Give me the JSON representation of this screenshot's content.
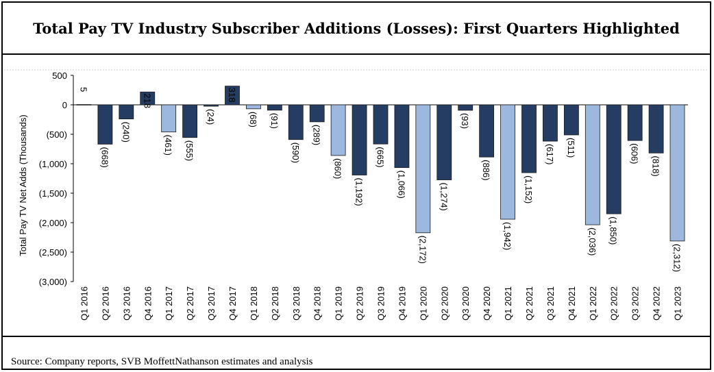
{
  "header": {
    "title": "Total Pay TV Industry Subscriber Additions (Losses): First Quarters Highlighted"
  },
  "footer": {
    "source": "Source: Company reports, SVB MoffettNathanson estimates and analysis"
  },
  "chart_data": {
    "type": "bar",
    "title": "Total Pay TV Industry Subscriber Additions (Losses): First Quarters Highlighted",
    "xlabel": "",
    "ylabel": "Total Pay TV Net Adds (Thousands)",
    "ylim": [
      -3000,
      500
    ],
    "yticks": [
      500,
      0,
      -500,
      -1000,
      -1500,
      -2000,
      -2500,
      -3000
    ],
    "ytick_labels": [
      "500",
      "0",
      "(500)",
      "(1,000)",
      "(1,500)",
      "(2,000)",
      "(2,500)",
      "(3,000)"
    ],
    "categories": [
      "Q1 2016",
      "Q2 2016",
      "Q3 2016",
      "Q4 2016",
      "Q1 2017",
      "Q2 2017",
      "Q3 2017",
      "Q4 2017",
      "Q1 2018",
      "Q2 2018",
      "Q3 2018",
      "Q4 2018",
      "Q1 2019",
      "Q2 2019",
      "Q3 2019",
      "Q4 2019",
      "Q1 2020",
      "Q2 2020",
      "Q3 2020",
      "Q4 2020",
      "Q1 2021",
      "Q2 2021",
      "Q3 2021",
      "Q4 2021",
      "Q1 2022",
      "Q2 2022",
      "Q3 2022",
      "Q4 2022",
      "Q1 2023"
    ],
    "values": [
      5,
      -668,
      -240,
      218,
      -461,
      -555,
      -24,
      318,
      -68,
      -91,
      -590,
      -289,
      -860,
      -1192,
      -665,
      -1066,
      -2172,
      -1274,
      -93,
      -886,
      -1942,
      -1152,
      -617,
      -511,
      -2036,
      -1850,
      -606,
      -818,
      -2312
    ],
    "value_labels": [
      "5",
      "(668)",
      "(240)",
      "218",
      "(461)",
      "(555)",
      "(24)",
      "318",
      "(68)",
      "(91)",
      "(590)",
      "(289)",
      "(860)",
      "(1,192)",
      "(665)",
      "(1,066)",
      "(2,172)",
      "(1,274)",
      "(93)",
      "(886)",
      "(1,942)",
      "(1,152)",
      "(617)",
      "(511)",
      "(2,036)",
      "(1,850)",
      "(606)",
      "(818)",
      "(2,312)"
    ],
    "highlighted": [
      true,
      false,
      false,
      false,
      true,
      false,
      false,
      false,
      true,
      false,
      false,
      false,
      true,
      false,
      false,
      false,
      true,
      false,
      false,
      false,
      true,
      false,
      false,
      false,
      true,
      false,
      false,
      false,
      true
    ],
    "colors": {
      "regular": "#253D63",
      "highlight": "#9CB8DE",
      "edge": "#1a1a1a"
    },
    "grid": false,
    "legend": "none"
  }
}
